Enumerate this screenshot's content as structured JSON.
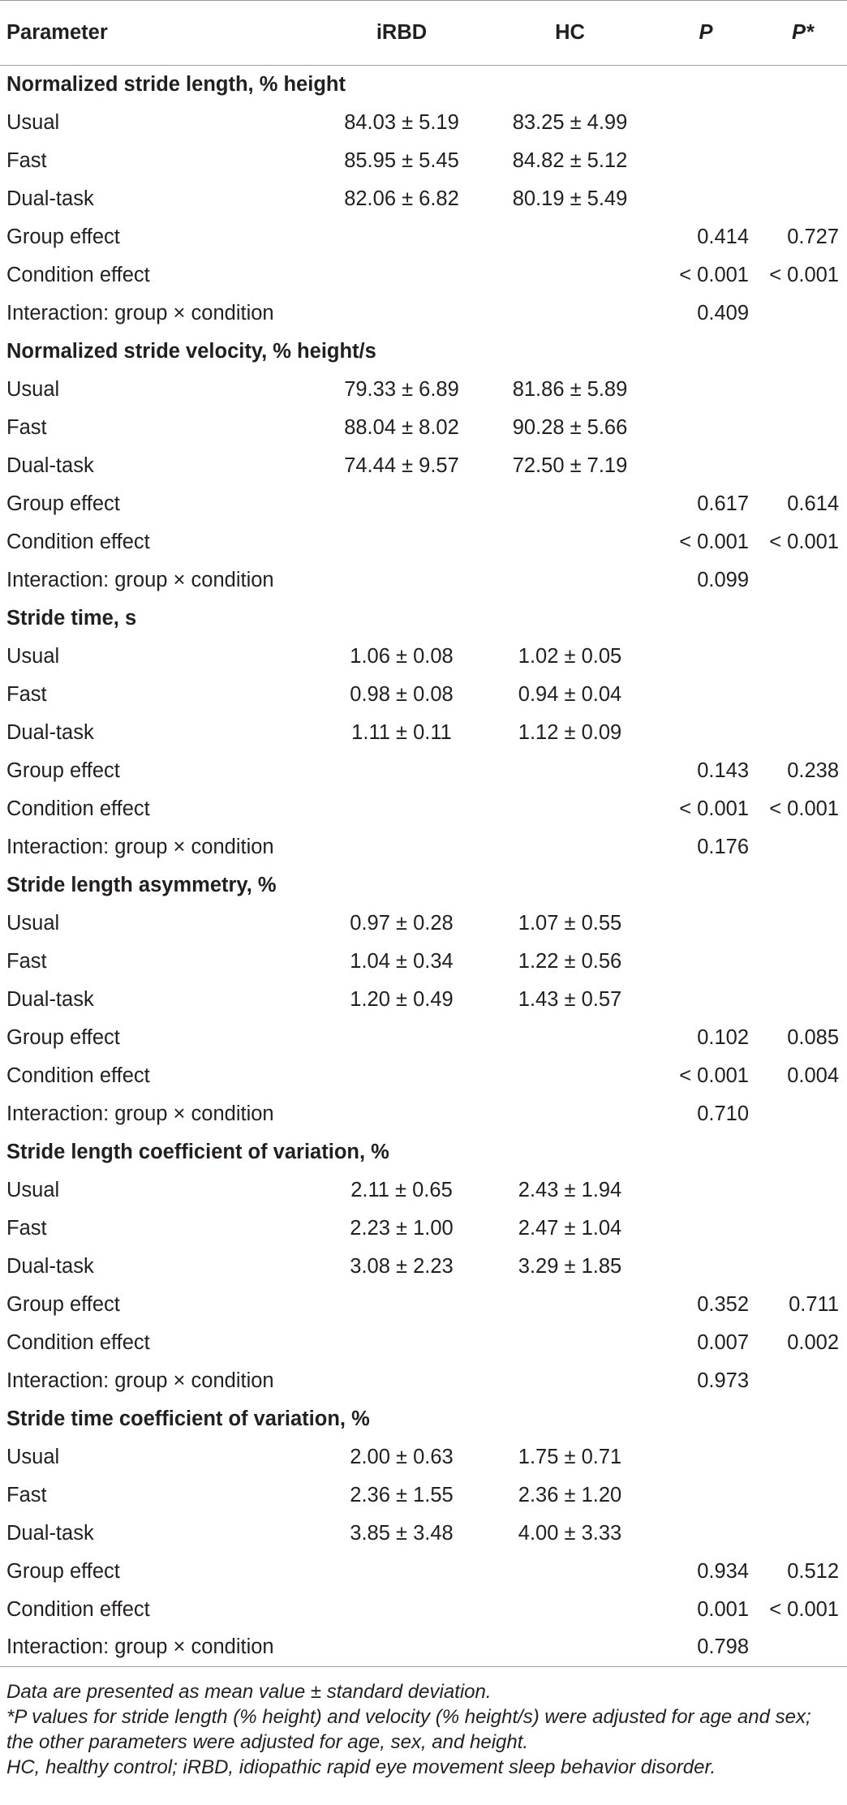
{
  "table": {
    "headers": [
      "Parameter",
      "iRBD",
      "HC",
      "P",
      "P*"
    ],
    "sections": [
      {
        "title": "Normalized stride length, % height",
        "rows": [
          {
            "label": "Usual",
            "irbd": "84.03 ± 5.19",
            "hc": "83.25 ± 4.99",
            "p": "",
            "pstar": ""
          },
          {
            "label": "Fast",
            "irbd": "85.95 ± 5.45",
            "hc": "84.82 ± 5.12",
            "p": "",
            "pstar": ""
          },
          {
            "label": "Dual-task",
            "irbd": "82.06 ± 6.82",
            "hc": "80.19 ± 5.49",
            "p": "",
            "pstar": ""
          },
          {
            "label": "Group effect",
            "irbd": "",
            "hc": "",
            "p": "0.414",
            "pstar": "0.727"
          },
          {
            "label": "Condition effect",
            "irbd": "",
            "hc": "",
            "p": "< 0.001",
            "pstar": "< 0.001"
          },
          {
            "label": "Interaction: group × condition",
            "irbd": "",
            "hc": "",
            "p": "0.409",
            "pstar": ""
          }
        ]
      },
      {
        "title": "Normalized stride velocity, % height/s",
        "rows": [
          {
            "label": "Usual",
            "irbd": "79.33 ± 6.89",
            "hc": "81.86 ± 5.89",
            "p": "",
            "pstar": ""
          },
          {
            "label": "Fast",
            "irbd": "88.04 ± 8.02",
            "hc": "90.28 ± 5.66",
            "p": "",
            "pstar": ""
          },
          {
            "label": "Dual-task",
            "irbd": "74.44 ± 9.57",
            "hc": "72.50 ± 7.19",
            "p": "",
            "pstar": ""
          },
          {
            "label": "Group effect",
            "irbd": "",
            "hc": "",
            "p": "0.617",
            "pstar": "0.614"
          },
          {
            "label": "Condition effect",
            "irbd": "",
            "hc": "",
            "p": "< 0.001",
            "pstar": "< 0.001"
          },
          {
            "label": "Interaction: group × condition",
            "irbd": "",
            "hc": "",
            "p": "0.099",
            "pstar": ""
          }
        ]
      },
      {
        "title": "Stride time, s",
        "rows": [
          {
            "label": "Usual",
            "irbd": "1.06 ± 0.08",
            "hc": "1.02 ± 0.05",
            "p": "",
            "pstar": ""
          },
          {
            "label": "Fast",
            "irbd": "0.98 ± 0.08",
            "hc": "0.94 ± 0.04",
            "p": "",
            "pstar": ""
          },
          {
            "label": "Dual-task",
            "irbd": "1.11 ± 0.11",
            "hc": "1.12 ± 0.09",
            "p": "",
            "pstar": ""
          },
          {
            "label": "Group effect",
            "irbd": "",
            "hc": "",
            "p": "0.143",
            "pstar": "0.238"
          },
          {
            "label": "Condition effect",
            "irbd": "",
            "hc": "",
            "p": "< 0.001",
            "pstar": "< 0.001"
          },
          {
            "label": "Interaction: group × condition",
            "irbd": "",
            "hc": "",
            "p": "0.176",
            "pstar": ""
          }
        ]
      },
      {
        "title": "Stride length asymmetry, %",
        "rows": [
          {
            "label": "Usual",
            "irbd": "0.97 ± 0.28",
            "hc": "1.07 ± 0.55",
            "p": "",
            "pstar": ""
          },
          {
            "label": "Fast",
            "irbd": "1.04 ± 0.34",
            "hc": "1.22 ± 0.56",
            "p": "",
            "pstar": ""
          },
          {
            "label": "Dual-task",
            "irbd": "1.20 ± 0.49",
            "hc": "1.43 ± 0.57",
            "p": "",
            "pstar": ""
          },
          {
            "label": "Group effect",
            "irbd": "",
            "hc": "",
            "p": "0.102",
            "pstar": "0.085"
          },
          {
            "label": "Condition effect",
            "irbd": "",
            "hc": "",
            "p": "< 0.001",
            "pstar": "0.004"
          },
          {
            "label": "Interaction: group × condition",
            "irbd": "",
            "hc": "",
            "p": "0.710",
            "pstar": ""
          }
        ]
      },
      {
        "title": "Stride length coefficient of variation, %",
        "rows": [
          {
            "label": "Usual",
            "irbd": "2.11 ± 0.65",
            "hc": "2.43 ± 1.94",
            "p": "",
            "pstar": ""
          },
          {
            "label": "Fast",
            "irbd": "2.23 ± 1.00",
            "hc": "2.47 ± 1.04",
            "p": "",
            "pstar": ""
          },
          {
            "label": "Dual-task",
            "irbd": "3.08 ± 2.23",
            "hc": "3.29 ± 1.85",
            "p": "",
            "pstar": ""
          },
          {
            "label": "Group effect",
            "irbd": "",
            "hc": "",
            "p": "0.352",
            "pstar": "0.711"
          },
          {
            "label": "Condition effect",
            "irbd": "",
            "hc": "",
            "p": "0.007",
            "pstar": "0.002"
          },
          {
            "label": "Interaction: group × condition",
            "irbd": "",
            "hc": "",
            "p": "0.973",
            "pstar": ""
          }
        ]
      },
      {
        "title": "Stride time coefficient of variation, %",
        "rows": [
          {
            "label": "Usual",
            "irbd": "2.00 ± 0.63",
            "hc": "1.75 ± 0.71",
            "p": "",
            "pstar": ""
          },
          {
            "label": "Fast",
            "irbd": "2.36 ± 1.55",
            "hc": "2.36 ± 1.20",
            "p": "",
            "pstar": ""
          },
          {
            "label": "Dual-task",
            "irbd": "3.85 ± 3.48",
            "hc": "4.00 ± 3.33",
            "p": "",
            "pstar": ""
          },
          {
            "label": "Group effect",
            "irbd": "",
            "hc": "",
            "p": "0.934",
            "pstar": "0.512"
          },
          {
            "label": "Condition effect",
            "irbd": "",
            "hc": "",
            "p": "0.001",
            "pstar": "< 0.001"
          },
          {
            "label": "Interaction: group × condition",
            "irbd": "",
            "hc": "",
            "p": "0.798",
            "pstar": ""
          }
        ]
      }
    ]
  },
  "footnotes": [
    "Data are presented as mean value ± standard deviation.",
    "*P values for stride length (% height) and velocity (% height/s) were adjusted for age and sex; the other parameters were adjusted for age, sex, and height.",
    "HC, healthy control; iRBD, idiopathic rapid eye movement sleep behavior disorder."
  ]
}
